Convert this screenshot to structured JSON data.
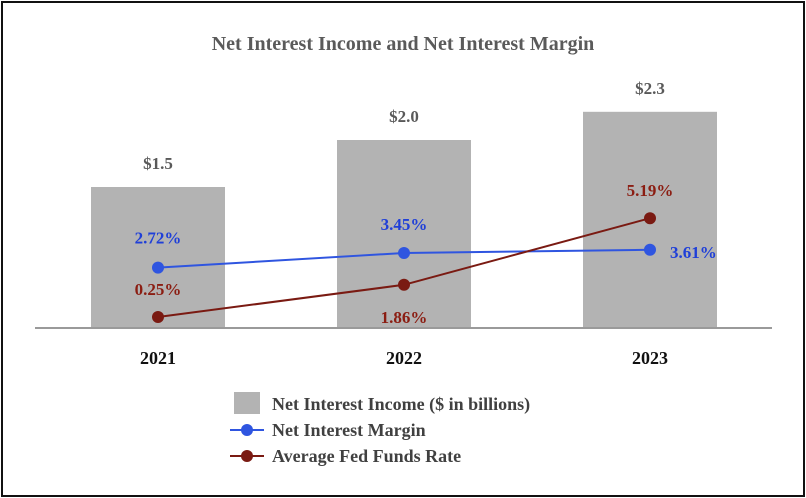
{
  "chart_data": {
    "type": "bar",
    "title": "Net Interest Income and Net Interest Margin",
    "xlabel": "",
    "ylabel": "",
    "categories": [
      "2021",
      "2022",
      "2023"
    ],
    "series": [
      {
        "name": "Net Interest Income ($ in billions)",
        "kind": "bar",
        "color": "#b3b3b3",
        "values": [
          1.5,
          2.0,
          2.3
        ],
        "labels": [
          "$1.5",
          "$2.0",
          "$2.3"
        ],
        "label_color": "#595959"
      },
      {
        "name": "Net Interest Margin",
        "kind": "line",
        "color": "#2f55e0",
        "label_color": "#1f3fd8",
        "values": [
          2.72,
          3.45,
          3.61
        ],
        "labels": [
          "2.72%",
          "3.45%",
          "3.61%"
        ]
      },
      {
        "name": "Average Fed Funds Rate",
        "kind": "line",
        "color": "#7a1a12",
        "label_color": "#8b1d12",
        "values": [
          0.25,
          1.86,
          5.19
        ],
        "labels": [
          "0.25%",
          "1.86%",
          "5.19%"
        ]
      }
    ],
    "legend_position": "bottom",
    "grid": false
  }
}
